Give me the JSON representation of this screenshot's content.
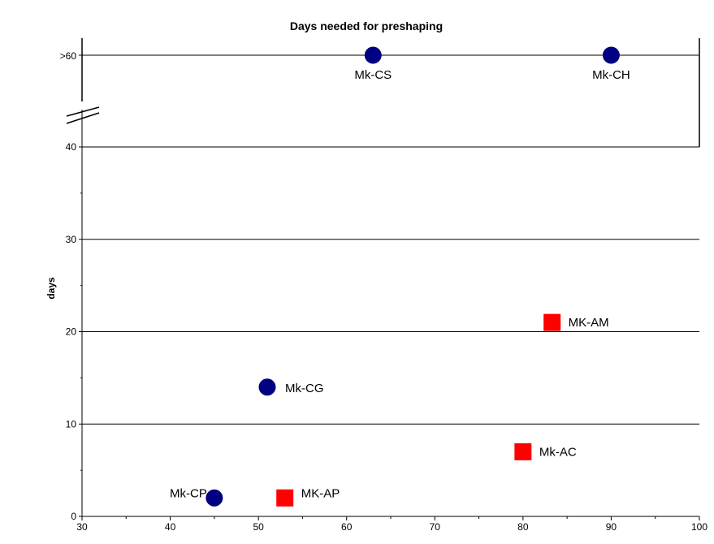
{
  "chart_data": {
    "type": "scatter",
    "title": "Days needed for preshaping",
    "xlabel": "",
    "ylabel": "days",
    "xlim": [
      30,
      100
    ],
    "ylim": [
      0,
      40
    ],
    "x_ticks": [
      "30",
      "40",
      "50",
      "60",
      "70",
      "80",
      "90",
      "100"
    ],
    "y_ticks": [
      "0",
      "10",
      "20",
      "30",
      "40"
    ],
    "overflow_tick": ">60",
    "axis_break": true,
    "grid": "horizontal",
    "colors": {
      "circle": "#000080",
      "square": "#ff0000"
    },
    "series": [
      {
        "marker": "circle",
        "points": [
          {
            "label": "Mk-CP",
            "x": 45,
            "y": 2
          },
          {
            "label": "Mk-CG",
            "x": 51,
            "y": 14
          }
        ]
      },
      {
        "marker": "circle",
        "overflow": true,
        "points": [
          {
            "label": "Mk-CS",
            "x": 63,
            "y": ">60"
          },
          {
            "label": "Mk-CH",
            "x": 90,
            "y": ">60"
          }
        ]
      },
      {
        "marker": "square",
        "points": [
          {
            "label": "MK-AP",
            "x": 53,
            "y": 2
          },
          {
            "label": "Mk-AC",
            "x": 80,
            "y": 7
          },
          {
            "label": "MK-AM",
            "x": 83.3,
            "y": 21
          }
        ]
      }
    ]
  }
}
